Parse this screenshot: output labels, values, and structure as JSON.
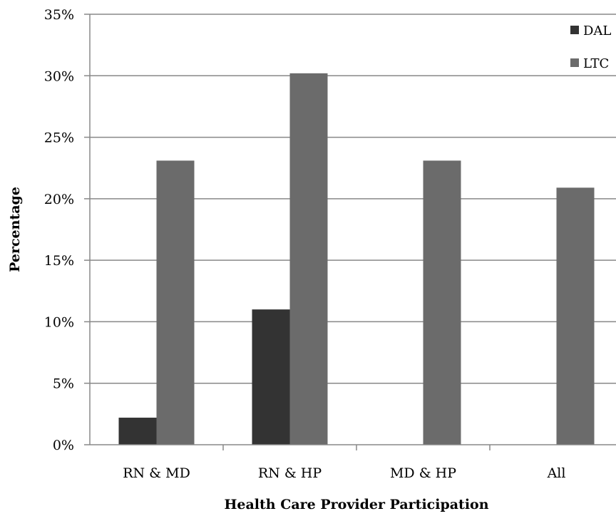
{
  "chart_data": {
    "type": "bar",
    "title": "",
    "xlabel": "Health Care Provider Participation",
    "ylabel": "Percentage",
    "categories": [
      "RN & MD",
      "RN & HP",
      "MD & HP",
      "All"
    ],
    "series": [
      {
        "name": "DAL",
        "color": "#333333",
        "values": [
          2.2,
          11.0,
          0,
          0
        ]
      },
      {
        "name": "LTC",
        "color": "#6b6b6b",
        "values": [
          23.1,
          30.2,
          23.1,
          20.9
        ]
      }
    ],
    "ylim": [
      0,
      35
    ],
    "yticks": [
      {
        "value": 0,
        "label": "0%"
      },
      {
        "value": 5,
        "label": "5%"
      },
      {
        "value": 10,
        "label": "10%"
      },
      {
        "value": 15,
        "label": "15%"
      },
      {
        "value": 20,
        "label": "20%"
      },
      {
        "value": 25,
        "label": "25%"
      },
      {
        "value": 30,
        "label": "30%"
      },
      {
        "value": 35,
        "label": "35%"
      }
    ],
    "grid": true,
    "legend": "top-right"
  }
}
